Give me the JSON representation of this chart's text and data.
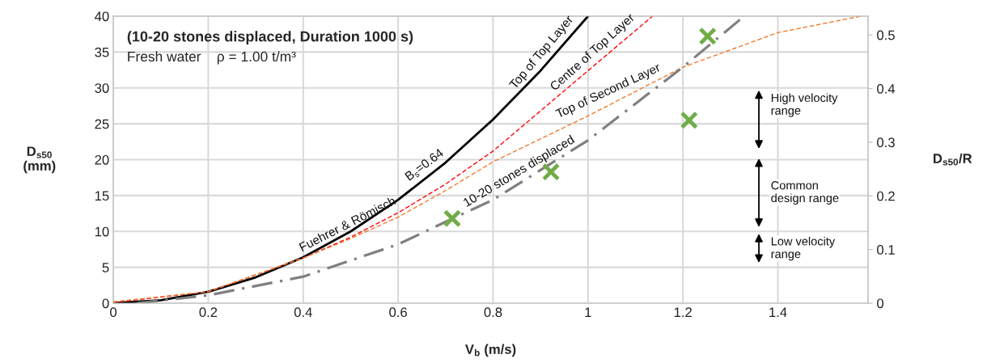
{
  "chart_data": {
    "type": "line",
    "title": "(10-20 stones displaced, Duration 1000 s)",
    "subtitle": "Fresh water    ρ = 1.00 t/m³",
    "xlabel": "V$_{b}$ (m/s)",
    "ylabel": "D$_{s50}$\n(mm)",
    "y2label": "D$_{s50}$/R",
    "series": [
      {
        "color": "#000000",
        "line_style": "solid",
        "x": [
          0,
          0.1,
          0.2,
          0.3,
          0.4,
          0.5,
          0.6,
          0.7,
          0.8,
          0.9,
          1.0
        ],
        "values": [
          0,
          0.4,
          1.6,
          3.6,
          6.4,
          10,
          14.4,
          19.6,
          25.6,
          32.4,
          40
        ]
      },
      {
        "color": "#ff0000",
        "line_style": "dashed",
        "x": [
          0,
          0.2,
          0.4,
          0.5,
          0.6,
          0.7,
          0.8,
          1.0,
          1.136
        ],
        "values": [
          0.1,
          1.6,
          6.3,
          9.2,
          12.6,
          16.6,
          21.2,
          32.4,
          40
        ]
      },
      {
        "color": "#ed7d31",
        "line_style": "dashed",
        "x": [
          0,
          0.2,
          0.4,
          0.5,
          0.6,
          0.7,
          0.8,
          1.0,
          1.2,
          1.4,
          1.575
        ],
        "values": [
          0.2,
          1.6,
          6.3,
          9.0,
          12.0,
          15.7,
          19.7,
          26.1,
          32.9,
          37.7,
          40
        ]
      },
      {
        "color": "#808080",
        "line_style": "dashdot",
        "x": [
          0.05,
          0.2,
          0.4,
          0.6,
          0.715,
          0.8,
          1.0,
          1.2,
          1.329
        ],
        "values": [
          0,
          1.1,
          3.7,
          8.2,
          11.8,
          14.4,
          22.7,
          32.9,
          40
        ]
      },
      {
        "type": "scatter",
        "color": "#70ad47",
        "marker": "cross",
        "x": [
          0.714,
          0.922,
          1.213,
          1.252
        ],
        "values": [
          11.8,
          18.3,
          25.5,
          37.2
        ]
      }
    ],
    "xlim": [
      0,
      1.59
    ],
    "ylim": [
      0,
      40
    ],
    "y2lim": [
      0,
      0.535
    ],
    "xticks": [
      0,
      0.2,
      0.4,
      0.6,
      0.8,
      1,
      1.2,
      1.4
    ],
    "yticks": [
      0,
      5,
      10,
      15,
      20,
      25,
      30,
      35,
      40
    ],
    "y2ticks": [
      0,
      0.1,
      0.2,
      0.3,
      0.4,
      0.5
    ],
    "grid": true,
    "annotations": [
      "Fuehrer & Römisch",
      "B$_{s}$=0.64",
      "Top of Top Layer",
      "Centre of Top Layer",
      "Top of Second Layer",
      "10-20 stones displaced",
      "High velocity\nrange",
      "Common\ndesign range",
      "Low velocity\nrange"
    ]
  }
}
